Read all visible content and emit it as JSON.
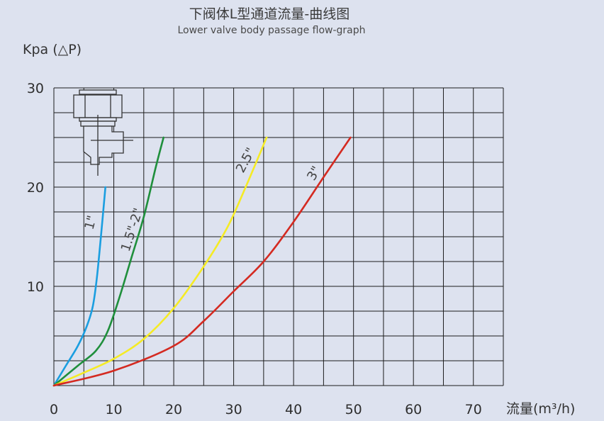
{
  "chart_data": {
    "type": "line",
    "title": "下阀体L型通道流量-曲线图",
    "subtitle": "Lower valve body passage flow-graph",
    "ylabel": "Kpa (△P)",
    "xlabel": "流量(m³/h)",
    "xlim": [
      0,
      75
    ],
    "ylim": [
      0,
      30
    ],
    "x_ticks": [
      "0",
      "10",
      "20",
      "30",
      "40",
      "50",
      "60",
      "70"
    ],
    "y_ticks": [
      "10",
      "20",
      "30"
    ],
    "grid": true,
    "series": [
      {
        "name": "1\"",
        "color": "#1a9ee0",
        "x": [
          0,
          2,
          4,
          5.5,
          6.5,
          7.2,
          8,
          8.6
        ],
        "y": [
          0,
          2,
          4,
          6,
          8,
          11,
          16,
          20
        ]
      },
      {
        "name": "1.5\"-2\"",
        "color": "#1f8f3c",
        "x": [
          0,
          4,
          7,
          9,
          11,
          13,
          15,
          17,
          18.3
        ],
        "y": [
          0,
          2,
          3.5,
          5.5,
          9,
          13,
          17,
          22,
          25
        ]
      },
      {
        "name": "2.5\"",
        "color": "#f5eb25",
        "x": [
          0,
          5,
          10,
          15,
          20,
          25,
          29,
          32,
          35.5
        ],
        "y": [
          0,
          1.3,
          2.7,
          4.7,
          7.8,
          12,
          16,
          20,
          25
        ]
      },
      {
        "name": "3\"",
        "color": "#d42a21",
        "x": [
          0,
          10,
          20,
          25,
          30,
          35,
          40,
          45,
          49.5
        ],
        "y": [
          0,
          1.5,
          4,
          6.5,
          9.5,
          12.5,
          16.5,
          21,
          25
        ]
      }
    ]
  }
}
